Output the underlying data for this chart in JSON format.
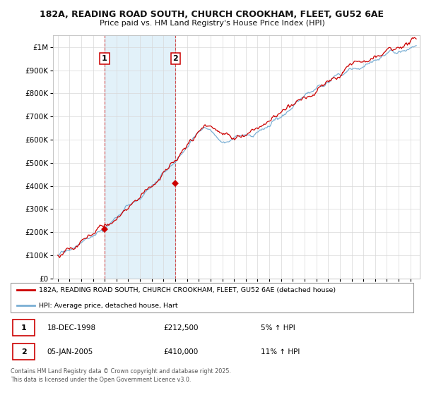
{
  "title_line1": "182A, READING ROAD SOUTH, CHURCH CROOKHAM, FLEET, GU52 6AE",
  "title_line2": "Price paid vs. HM Land Registry's House Price Index (HPI)",
  "red_line_color": "#cc0000",
  "blue_line_color": "#7aafd4",
  "shade_color": "#d0e8f5",
  "grid_color": "#d8d8d8",
  "sale1_date": "18-DEC-1998",
  "sale1_price": 212500,
  "sale1_year": 1998.97,
  "sale1_hpi_pct": "5%",
  "sale2_date": "05-JAN-2005",
  "sale2_price": 410000,
  "sale2_year": 2005.03,
  "sale2_hpi_pct": "11%",
  "legend_label_red": "182A, READING ROAD SOUTH, CHURCH CROOKHAM, FLEET, GU52 6AE (detached house)",
  "legend_label_blue": "HPI: Average price, detached house, Hart",
  "footnote": "Contains HM Land Registry data © Crown copyright and database right 2025.\nThis data is licensed under the Open Government Licence v3.0.",
  "ylim_min": 0,
  "ylim_max": 1050000,
  "xmin": 1994.6,
  "xmax": 2025.8
}
